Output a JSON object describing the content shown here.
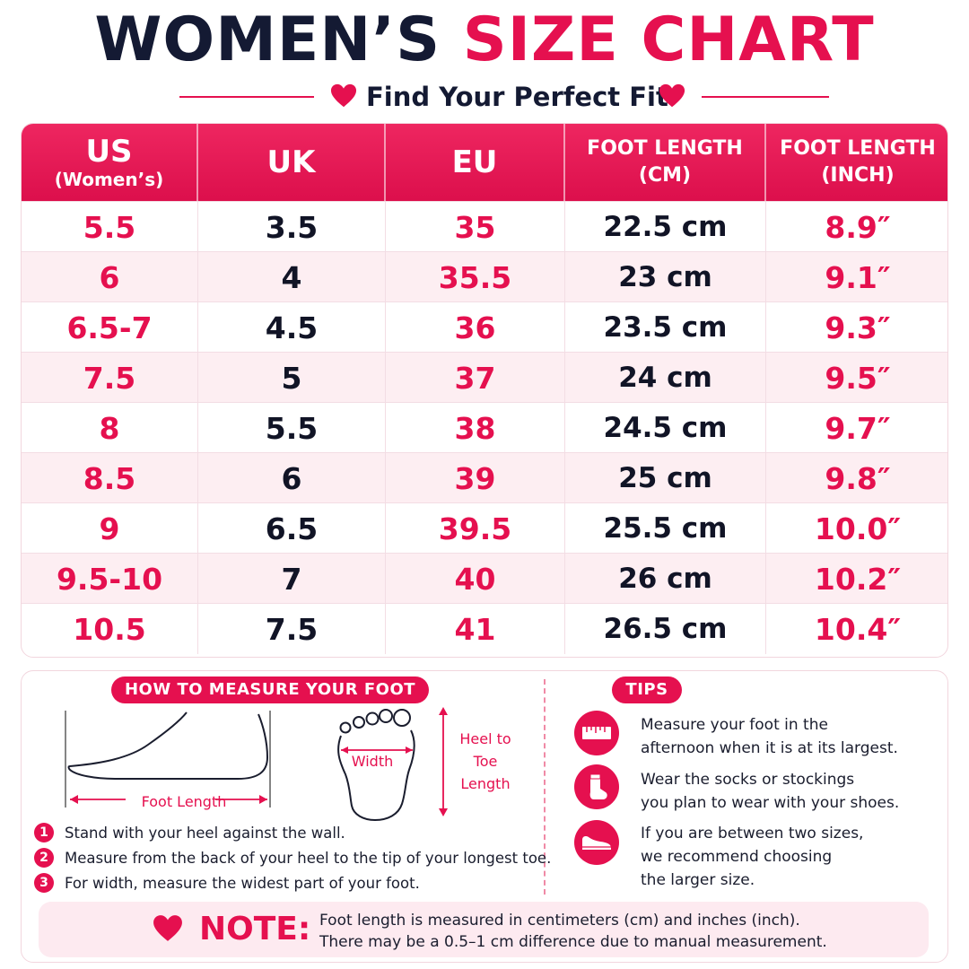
{
  "header": {
    "title_part1": "WOMEN’S",
    "title_part2": "SIZE CHART",
    "subtitle": "Find Your Perfect Fit"
  },
  "colors": {
    "accent": "#e5104f",
    "navy": "#141a33",
    "row_alt": "#fdeef2"
  },
  "table": {
    "headers": [
      {
        "line1": "US",
        "line2": "(Women’s)"
      },
      {
        "line1": "UK",
        "line2": ""
      },
      {
        "line1": "EU",
        "line2": ""
      },
      {
        "line1": "FOOT LENGTH",
        "line2": "(CM)"
      },
      {
        "line1": "FOOT LENGTH",
        "line2": "(INCH)"
      }
    ],
    "rows": [
      [
        "5.5",
        "3.5",
        "35",
        "22.5 cm",
        "8.9″"
      ],
      [
        "6",
        "4",
        "35.5",
        "23 cm",
        "9.1″"
      ],
      [
        "6.5-7",
        "4.5",
        "36",
        "23.5 cm",
        "9.3″"
      ],
      [
        "7.5",
        "5",
        "37",
        "24 cm",
        "9.5″"
      ],
      [
        "8",
        "5.5",
        "38",
        "24.5 cm",
        "9.7″"
      ],
      [
        "8.5",
        "6",
        "39",
        "25 cm",
        "9.8″"
      ],
      [
        "9",
        "6.5",
        "39.5",
        "25.5 cm",
        "10.0″"
      ],
      [
        "9.5-10",
        "7",
        "40",
        "26 cm",
        "10.2″"
      ],
      [
        "10.5",
        "7.5",
        "41",
        "26.5 cm",
        "10.4″"
      ]
    ]
  },
  "measure": {
    "heading": "HOW TO MEASURE YOUR FOOT",
    "foot_length_label": "Foot Length",
    "width_label": "Width",
    "heel_to_toe": [
      "Heel to",
      "Toe",
      "Length"
    ],
    "steps": [
      {
        "num": "1",
        "text": "Stand with your heel against the wall."
      },
      {
        "num": "2",
        "text": "Measure from the back of your heel to the tip of your longest toe."
      },
      {
        "num": "3",
        "text": "For width, measure the widest part of your foot."
      }
    ]
  },
  "tips": {
    "heading": "TIPS",
    "items": [
      {
        "icon": "ruler-icon",
        "lines": [
          "Measure your foot in the",
          "afternoon when it is at its largest."
        ]
      },
      {
        "icon": "sock-icon",
        "lines": [
          "Wear the socks or stockings",
          "you plan to wear with your shoes."
        ]
      },
      {
        "icon": "shoe-icon",
        "lines": [
          "If you are between two sizes,",
          "we recommend choosing",
          "the larger size."
        ]
      }
    ]
  },
  "note": {
    "label": "NOTE:",
    "lines": [
      "Foot length is measured in centimeters (cm) and inches (inch).",
      "There may be a 0.5–1 cm difference due to manual measurement."
    ]
  }
}
